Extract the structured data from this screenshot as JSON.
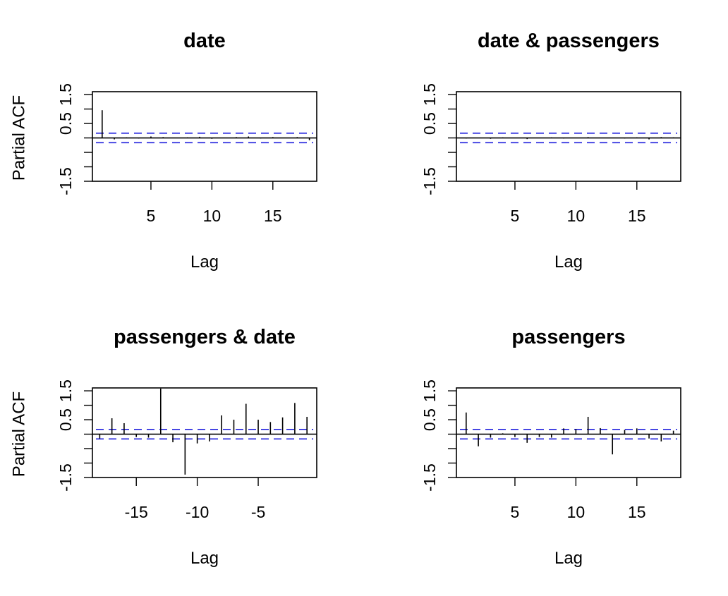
{
  "chart_data": [
    {
      "type": "pacf",
      "title": "date",
      "xlabel": "Lag",
      "ylabel": "Partial ACF",
      "xlim": [
        0.2,
        18.6
      ],
      "ylim": [
        -1.5,
        1.6
      ],
      "xticks": [
        5,
        10,
        15
      ],
      "yticks": [
        -1.5,
        -1.0,
        -0.5,
        0.0,
        0.5,
        1.0,
        1.5
      ],
      "ytick_labels": [
        "-1.5",
        "",
        "",
        "",
        "0.5",
        "",
        "1.5"
      ],
      "ci": 0.165,
      "lags": [
        1,
        2,
        3,
        4,
        5,
        6,
        7,
        8,
        9,
        10,
        11,
        12,
        13,
        14,
        15,
        16,
        17,
        18
      ],
      "values": [
        0.96,
        -0.05,
        0.02,
        -0.02,
        0.05,
        0.03,
        -0.01,
        0.02,
        0.04,
        -0.03,
        0.01,
        0.03,
        0.05,
        -0.02,
        0.03,
        0.01,
        0.03,
        -0.08
      ]
    },
    {
      "type": "pacf",
      "title": "date & passengers",
      "xlabel": "Lag",
      "ylabel": "",
      "xlim": [
        0.2,
        18.6
      ],
      "ylim": [
        -1.5,
        1.6
      ],
      "xticks": [
        5,
        10,
        15
      ],
      "yticks": [
        -1.5,
        -1.0,
        -0.5,
        0.0,
        0.5,
        1.0,
        1.5
      ],
      "ytick_labels": [
        "-1.5",
        "",
        "",
        "",
        "0.5",
        "",
        "1.5"
      ],
      "ci": 0.165,
      "lags": [
        1,
        2,
        3,
        4,
        5,
        6,
        7,
        8,
        9,
        10,
        11,
        12,
        13,
        14,
        15,
        16,
        17,
        18
      ],
      "values": [
        -0.02,
        0.01,
        -0.03,
        0.02,
        -0.01,
        -0.04,
        0.01,
        0.02,
        -0.02,
        0.01,
        0.03,
        -0.01,
        0.01,
        -0.02,
        0.02,
        -0.05,
        0.03,
        0.02
      ]
    },
    {
      "type": "pacf",
      "title": "passengers & date",
      "xlabel": "Lag",
      "ylabel": "Partial ACF",
      "xlim": [
        -18.6,
        -0.2
      ],
      "ylim": [
        -1.5,
        1.6
      ],
      "xticks": [
        -15,
        -10,
        -5
      ],
      "yticks": [
        -1.5,
        -1.0,
        -0.5,
        0.0,
        0.5,
        1.0,
        1.5
      ],
      "ytick_labels": [
        "-1.5",
        "",
        "",
        "",
        "0.5",
        "",
        "1.5"
      ],
      "ci": 0.165,
      "lags": [
        -18,
        -17,
        -16,
        -15,
        -14,
        -13,
        -12,
        -11,
        -10,
        -9,
        -8,
        -7,
        -6,
        -5,
        -4,
        -3,
        -2,
        -1
      ],
      "values": [
        -0.15,
        0.55,
        0.38,
        -0.1,
        -0.12,
        1.58,
        -0.28,
        -1.4,
        -0.32,
        -0.25,
        0.65,
        0.5,
        1.05,
        0.5,
        0.42,
        0.58,
        1.08,
        0.6
      ]
    },
    {
      "type": "pacf",
      "title": "passengers",
      "xlabel": "Lag",
      "ylabel": "",
      "xlim": [
        0.2,
        18.6
      ],
      "ylim": [
        -1.5,
        1.6
      ],
      "xticks": [
        5,
        10,
        15
      ],
      "yticks": [
        -1.5,
        -1.0,
        -0.5,
        0.0,
        0.5,
        1.0,
        1.5
      ],
      "ytick_labels": [
        "-1.5",
        "",
        "",
        "",
        "0.5",
        "",
        "1.5"
      ],
      "ci": 0.165,
      "lags": [
        1,
        2,
        3,
        4,
        5,
        6,
        7,
        8,
        9,
        10,
        11,
        12,
        13,
        14,
        15,
        16,
        17,
        18
      ],
      "values": [
        0.75,
        -0.42,
        -0.12,
        0.03,
        -0.1,
        -0.3,
        -0.1,
        -0.12,
        0.2,
        0.18,
        0.6,
        0.21,
        -0.7,
        0.15,
        0.2,
        -0.15,
        -0.25,
        0.12
      ]
    }
  ]
}
